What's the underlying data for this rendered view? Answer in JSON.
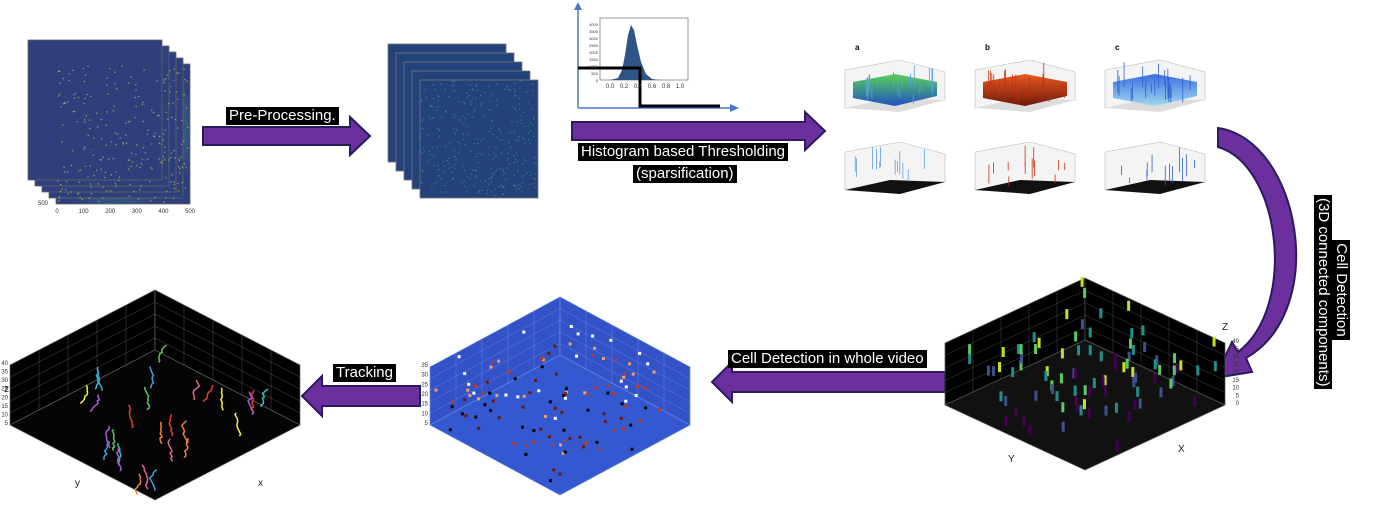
{
  "steps": {
    "preprocessing": "Pre-Processing.",
    "thresholding": [
      "Histogram based Thresholding",
      "(sparsification)"
    ],
    "cell_detection": [
      "Cell Detection",
      "(3D connected components)"
    ],
    "whole_video": "Cell Detection in whole video",
    "tracking": "Tracking"
  },
  "input_frames": {
    "x_ticks": [
      "0",
      "100",
      "200",
      "300",
      "400",
      "500"
    ],
    "y_tick": "500"
  },
  "histogram": {
    "x_ticks": [
      "0.0",
      "0.2",
      "0.4",
      "0.6",
      "0.8",
      "1.0"
    ],
    "y_ticks": [
      "4000",
      "3500",
      "3000",
      "2500",
      "2000",
      "1500",
      "1000",
      "500",
      "0"
    ]
  },
  "surface_plots": {
    "labels": [
      "a",
      "b",
      "c"
    ]
  },
  "detection_plot": {
    "axes": [
      "Z",
      "Y",
      "X"
    ],
    "z_ticks": [
      "40",
      "35",
      "30",
      "25",
      "20",
      "15",
      "10",
      "5",
      "0"
    ]
  },
  "video_plot": {
    "z_ticks": [
      "35",
      "30",
      "25",
      "20",
      "15",
      "10",
      "5"
    ]
  },
  "tracking_plot": {
    "axes": [
      "z",
      "y",
      "x"
    ],
    "z_ticks": [
      "40",
      "35",
      "30",
      "25",
      "20",
      "15",
      "10",
      "5"
    ]
  }
}
